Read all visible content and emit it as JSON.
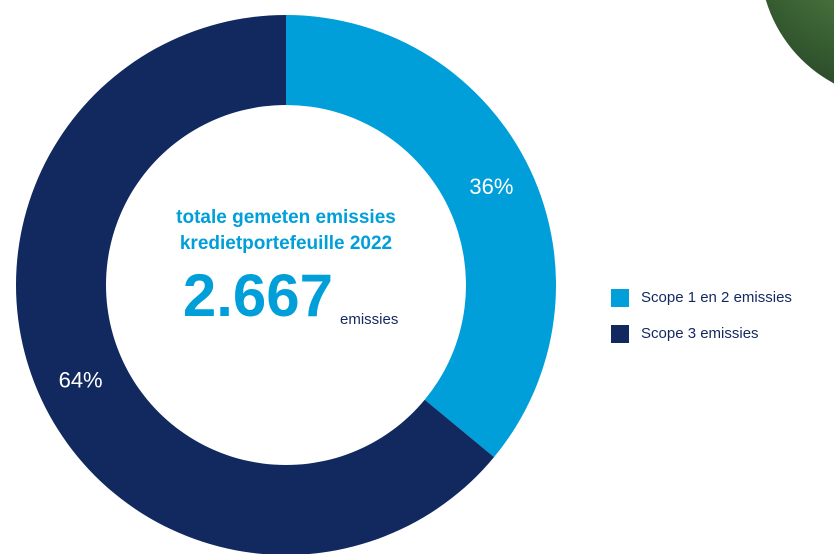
{
  "chart_data": {
    "type": "donut",
    "center_title": [
      "totale gemeten emissies",
      "kredietportefeuille 2022"
    ],
    "center_value": "2.667",
    "center_unit": "emissies",
    "categories": [
      "Scope 1 en 2 emissies",
      "Scope 3 emissies"
    ],
    "values": [
      36,
      64
    ],
    "value_labels": [
      "36%",
      "64%"
    ],
    "colors": [
      "#009fda",
      "#12295f"
    ],
    "legend": "right"
  }
}
